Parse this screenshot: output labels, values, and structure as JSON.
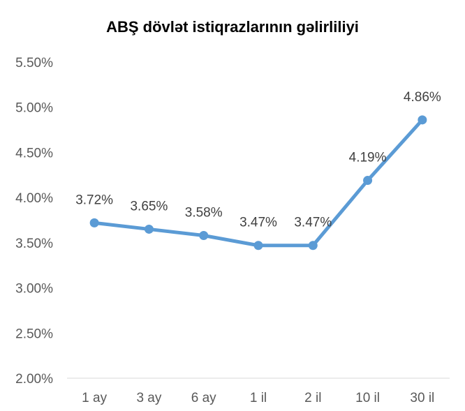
{
  "chart_data": {
    "type": "line",
    "title": "ABŞ dövlət istiqrazlarının gəlirliliyi",
    "xlabel": "",
    "ylabel": "",
    "categories": [
      "1 ay",
      "3 ay",
      "6 ay",
      "1 il",
      "2 il",
      "10 il",
      "30 il"
    ],
    "series": [
      {
        "values": [
          3.72,
          3.65,
          3.58,
          3.47,
          3.47,
          4.19,
          4.86
        ],
        "data_labels": [
          "3.72%",
          "3.65%",
          "3.58%",
          "3.47%",
          "3.47%",
          "4.19%",
          "4.86%"
        ],
        "color": "#5B9BD5"
      }
    ],
    "ylim": [
      2.0,
      5.5
    ],
    "yticks": [
      "2.00%",
      "2.50%",
      "3.00%",
      "3.50%",
      "4.00%",
      "4.50%",
      "5.00%",
      "5.50%"
    ],
    "grid": false,
    "legend": "none"
  }
}
